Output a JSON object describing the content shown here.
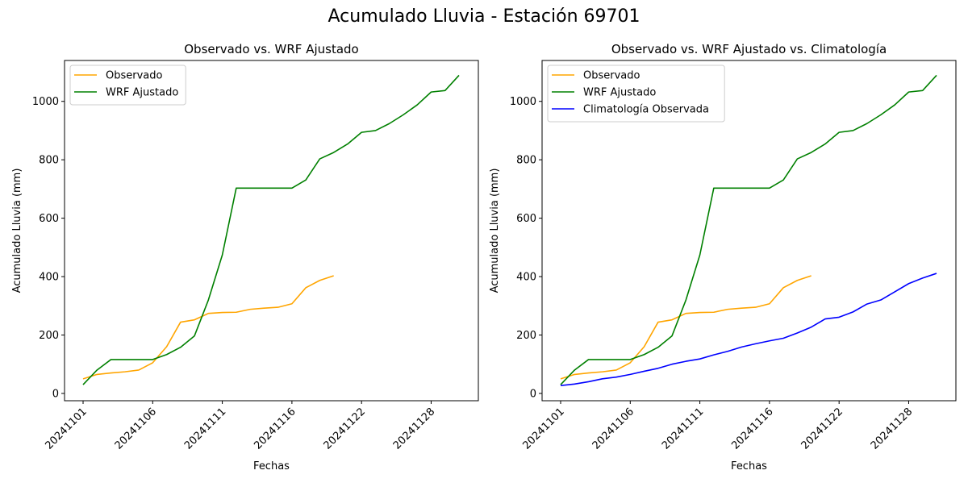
{
  "figure": {
    "suptitle": "Acumulado Lluvia - Estación 69701"
  },
  "chart_data": [
    {
      "type": "line",
      "title": "Observado vs. WRF Ajustado",
      "xlabel": "Fechas",
      "ylabel": "Acumulado Lluvia (mm)",
      "x": [
        "20241101",
        "20241102",
        "20241103",
        "20241104",
        "20241105",
        "20241106",
        "20241107",
        "20241108",
        "20241109",
        "20241110",
        "20241111",
        "20241112",
        "20241113",
        "20241114",
        "20241115",
        "20241116",
        "20241117",
        "20241118",
        "20241119",
        "20241120",
        "20241122",
        "20241123",
        "20241124",
        "20241125",
        "20241126",
        "20241128",
        "20241129",
        "20241130"
      ],
      "xticks": [
        "20241101",
        "20241106",
        "20241111",
        "20241116",
        "20241122",
        "20241128"
      ],
      "ylim": [
        -25,
        1140
      ],
      "yticks": [
        0,
        200,
        400,
        600,
        800,
        1000
      ],
      "legend": "upper left",
      "series": [
        {
          "name": "Observado",
          "color": "#ffa500",
          "values": [
            50,
            65,
            70,
            74,
            80,
            105,
            160,
            244,
            252,
            274,
            277,
            278,
            288,
            292,
            295,
            307,
            362,
            387,
            403,
            null,
            null,
            null,
            null,
            null,
            null,
            null,
            null,
            null
          ]
        },
        {
          "name": "WRF Ajustado",
          "color": "#008000",
          "values": [
            30,
            80,
            116,
            116,
            116,
            116,
            133,
            158,
            197,
            320,
            474,
            703,
            703,
            703,
            703,
            703,
            731,
            803,
            825,
            854,
            894,
            900,
            924,
            954,
            988,
            1032,
            1037,
            1089
          ]
        }
      ]
    },
    {
      "type": "line",
      "title": "Observado vs. WRF Ajustado vs. Climatología",
      "xlabel": "Fechas",
      "ylabel": "Acumulado Lluvia (mm)",
      "x": [
        "20241101",
        "20241102",
        "20241103",
        "20241104",
        "20241105",
        "20241106",
        "20241107",
        "20241108",
        "20241109",
        "20241110",
        "20241111",
        "20241112",
        "20241113",
        "20241114",
        "20241115",
        "20241116",
        "20241117",
        "20241118",
        "20241119",
        "20241120",
        "20241122",
        "20241123",
        "20241124",
        "20241125",
        "20241126",
        "20241128",
        "20241129",
        "20241130"
      ],
      "xticks": [
        "20241101",
        "20241106",
        "20241111",
        "20241116",
        "20241122",
        "20241128"
      ],
      "ylim": [
        -25,
        1140
      ],
      "yticks": [
        0,
        200,
        400,
        600,
        800,
        1000
      ],
      "legend": "upper left",
      "series": [
        {
          "name": "Observado",
          "color": "#ffa500",
          "values": [
            50,
            65,
            70,
            74,
            80,
            105,
            160,
            244,
            252,
            274,
            277,
            278,
            288,
            292,
            295,
            307,
            362,
            387,
            403,
            null,
            null,
            null,
            null,
            null,
            null,
            null,
            null,
            null
          ]
        },
        {
          "name": "WRF Ajustado",
          "color": "#008000",
          "values": [
            30,
            80,
            116,
            116,
            116,
            116,
            133,
            158,
            197,
            320,
            474,
            703,
            703,
            703,
            703,
            703,
            731,
            803,
            825,
            854,
            894,
            900,
            924,
            954,
            988,
            1032,
            1037,
            1089
          ]
        },
        {
          "name": "Climatología Observada",
          "color": "#0000ff",
          "values": [
            27,
            32,
            40,
            50,
            56,
            65,
            76,
            86,
            100,
            110,
            118,
            132,
            144,
            159,
            170,
            180,
            189,
            207,
            227,
            255,
            261,
            279,
            306,
            320,
            348,
            376,
            395,
            411
          ]
        }
      ]
    }
  ]
}
